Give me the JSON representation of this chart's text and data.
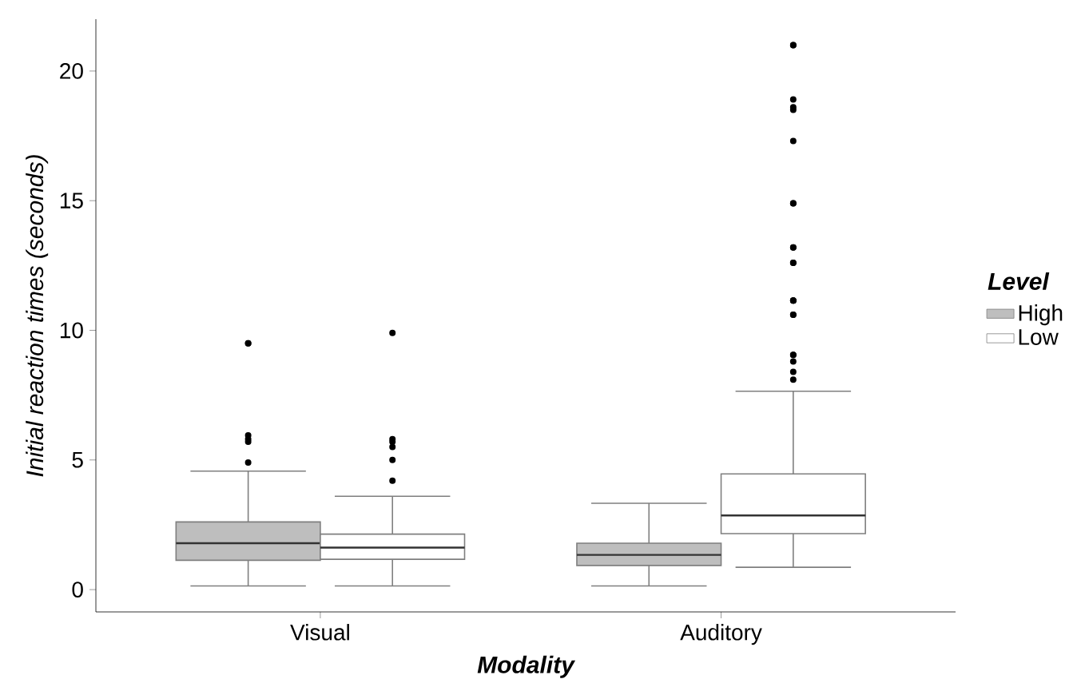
{
  "chart_data": {
    "type": "box",
    "xlabel": "Modality",
    "ylabel": "Initial reaction times (seconds)",
    "legend_title": "Level",
    "legend": "right",
    "categories": [
      "Visual",
      "Auditory"
    ],
    "ylim": [
      -0.86,
      22
    ],
    "yticks": [
      0,
      5,
      10,
      15,
      20
    ],
    "series": [
      {
        "name": "High",
        "color": "#bebebe",
        "boxes": [
          {
            "low": 0.14,
            "q1": 1.13,
            "median": 1.79,
            "q3": 2.61,
            "high": 4.57,
            "outliers": [
              9.5,
              9.5,
              5.95,
              5.8,
              5.7,
              4.9
            ]
          },
          {
            "low": 0.14,
            "q1": 0.93,
            "median": 1.34,
            "q3": 1.79,
            "high": 3.33
          }
        ]
      },
      {
        "name": "Low",
        "color": "#ffffff",
        "boxes": [
          {
            "low": 0.14,
            "q1": 1.17,
            "median": 1.62,
            "q3": 2.14,
            "high": 3.6,
            "outliers": [
              9.9,
              5.8,
              5.7,
              5.5,
              5.0,
              4.2
            ]
          },
          {
            "low": 0.86,
            "q1": 2.16,
            "median": 2.86,
            "q3": 4.46,
            "high": 7.65,
            "outliers": [
              21,
              21,
              18.9,
              18.6,
              18.5,
              17.3,
              14.9,
              14.9,
              13.2,
              13.2,
              12.6,
              12.6,
              11.15,
              11.15,
              11.15,
              10.6,
              10.6,
              9.05,
              9.05,
              8.8,
              8.4,
              8.1
            ]
          }
        ]
      }
    ]
  }
}
